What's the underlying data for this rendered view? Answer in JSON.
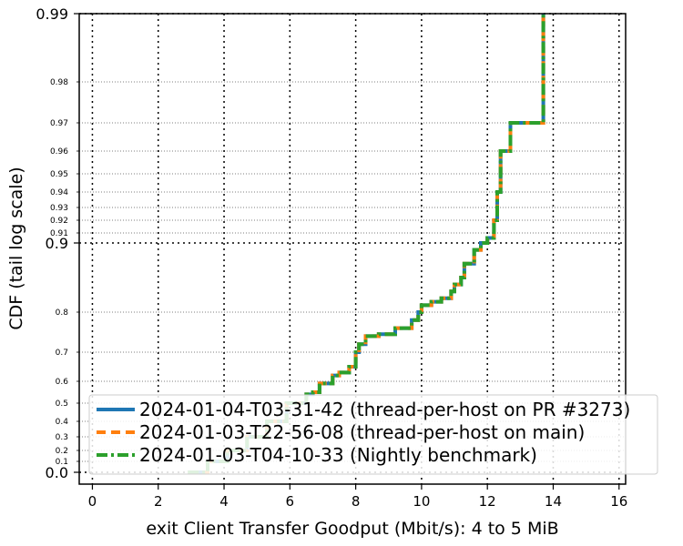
{
  "chart_data": {
    "type": "line",
    "title": "",
    "xlabel": "exit Client Transfer Goodput (Mbit/s): 4 to 5 MiB",
    "ylabel": "CDF (tail log scale)",
    "xlim": [
      -0.4,
      16.2
    ],
    "x_ticks": [
      0,
      2,
      4,
      6,
      8,
      10,
      12,
      14,
      16
    ],
    "x_tick_labels": [
      "0",
      "2",
      "4",
      "6",
      "8",
      "10",
      "12",
      "14",
      "16"
    ],
    "y_scale": "tail-log (logit-like, compressed below 0.5)",
    "y_major_ticks": [
      0.0,
      0.9,
      0.99
    ],
    "y_major_tick_labels": [
      "0.0",
      "0.9",
      "0.99"
    ],
    "y_minor_ticks": [
      0.1,
      0.2,
      0.3,
      0.4,
      0.5,
      0.6,
      0.7,
      0.8,
      0.91,
      0.92,
      0.93,
      0.94,
      0.95,
      0.96,
      0.97,
      0.98
    ],
    "y_minor_tick_labels": [
      "0.1",
      "0.2",
      "0.3",
      "0.4",
      "0.5",
      "0.6",
      "0.7",
      "0.8",
      "0.91",
      "0.92",
      "0.93",
      "0.94",
      "0.95",
      "0.96",
      "0.97",
      "0.98"
    ],
    "grid": true,
    "legend_position": "bottom-right",
    "series": [
      {
        "name": "2024-01-04-T03-31-42 (thread-per-host on PR #3273)",
        "color": "#1f77b4",
        "dash": "solid",
        "x": [
          2.9,
          3.5,
          4.1,
          4.7,
          5.3,
          5.9,
          6.5,
          6.7,
          6.9,
          7.3,
          7.5,
          7.8,
          8.0,
          8.1,
          8.3,
          8.7,
          9.2,
          9.7,
          9.9,
          10.0,
          10.3,
          10.6,
          10.9,
          11.0,
          11.2,
          11.3,
          11.6,
          11.8,
          12.0,
          12.2,
          12.3,
          12.4,
          12.7,
          13.7
        ],
        "y": [
          0.0,
          0.1,
          0.2,
          0.3,
          0.4,
          0.5,
          0.54,
          0.55,
          0.59,
          0.62,
          0.63,
          0.65,
          0.7,
          0.72,
          0.74,
          0.745,
          0.76,
          0.78,
          0.8,
          0.81,
          0.815,
          0.82,
          0.83,
          0.84,
          0.85,
          0.87,
          0.89,
          0.9,
          0.905,
          0.92,
          0.94,
          0.96,
          0.97,
          0.985
        ]
      },
      {
        "name": "2024-01-03-T22-56-08 (thread-per-host on main)",
        "color": "#ff7f0e",
        "dash": "dashed",
        "x": [
          2.9,
          3.5,
          4.1,
          4.7,
          5.3,
          5.9,
          6.5,
          6.7,
          6.9,
          7.3,
          7.5,
          7.8,
          8.0,
          8.1,
          8.3,
          8.7,
          9.2,
          9.7,
          9.9,
          10.0,
          10.3,
          10.6,
          10.9,
          11.0,
          11.2,
          11.3,
          11.6,
          11.8,
          12.0,
          12.2,
          12.3,
          12.4,
          12.7,
          13.7
        ],
        "y": [
          0.0,
          0.1,
          0.2,
          0.3,
          0.4,
          0.5,
          0.54,
          0.55,
          0.59,
          0.62,
          0.63,
          0.65,
          0.7,
          0.72,
          0.74,
          0.745,
          0.76,
          0.78,
          0.8,
          0.81,
          0.815,
          0.82,
          0.83,
          0.84,
          0.85,
          0.87,
          0.89,
          0.9,
          0.905,
          0.92,
          0.94,
          0.96,
          0.97,
          0.985
        ]
      },
      {
        "name": "2024-01-03-T04-10-33 (Nightly benchmark)",
        "color": "#2ca02c",
        "dash": "dashdot",
        "x": [
          2.9,
          3.5,
          4.1,
          4.7,
          5.3,
          5.9,
          6.5,
          6.7,
          6.9,
          7.3,
          7.5,
          7.8,
          8.0,
          8.1,
          8.3,
          8.7,
          9.2,
          9.7,
          9.9,
          10.0,
          10.3,
          10.6,
          10.9,
          11.0,
          11.2,
          11.3,
          11.6,
          11.8,
          12.0,
          12.2,
          12.3,
          12.4,
          12.7,
          13.7
        ],
        "y": [
          0.0,
          0.1,
          0.2,
          0.3,
          0.4,
          0.5,
          0.54,
          0.55,
          0.59,
          0.62,
          0.63,
          0.65,
          0.7,
          0.72,
          0.74,
          0.745,
          0.76,
          0.78,
          0.8,
          0.81,
          0.815,
          0.82,
          0.83,
          0.84,
          0.85,
          0.87,
          0.89,
          0.9,
          0.905,
          0.92,
          0.94,
          0.96,
          0.97,
          0.985
        ]
      }
    ]
  }
}
